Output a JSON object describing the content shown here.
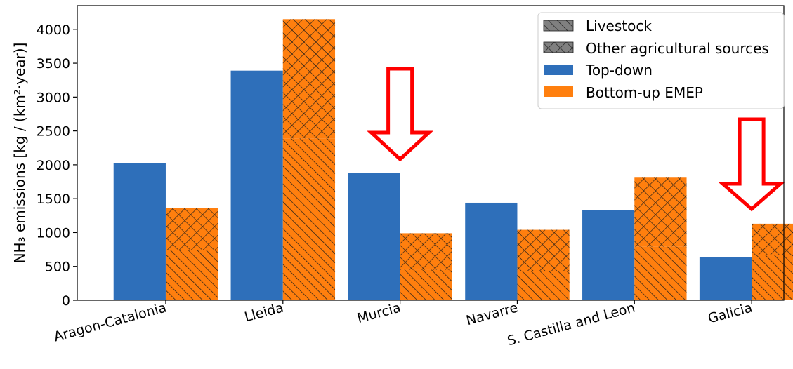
{
  "chart_data": {
    "type": "bar",
    "title": "",
    "xlabel": "",
    "ylabel": "NH₃ emissions [kg / (km²·year)]",
    "ylim": [
      0,
      4350
    ],
    "yticks": [
      0,
      500,
      1000,
      1500,
      2000,
      2500,
      3000,
      3500,
      4000
    ],
    "categories": [
      "Aragon-Catalonia",
      "Lleida",
      "Murcia",
      "Navarre",
      "S. Castilla and Leon",
      "Galicia"
    ],
    "series": [
      {
        "name": "Top-down",
        "color": "#2e6fba",
        "values": [
          2030,
          3390,
          1880,
          1440,
          1330,
          640
        ]
      },
      {
        "name": "Bottom-up EMEP",
        "color": "#ff7f0e",
        "values": [
          1360,
          4150,
          990,
          1040,
          1810,
          1130
        ],
        "components": [
          {
            "name": "Livestock",
            "hatch": "diagonal",
            "values": [
              740,
              2390,
              450,
              430,
              790,
              670
            ]
          },
          {
            "name": "Other agricultural sources",
            "hatch": "crosshatch",
            "values": [
              620,
              1760,
              540,
              610,
              1020,
              460
            ]
          }
        ]
      }
    ],
    "legend": {
      "position": "top-right",
      "entries": [
        {
          "label": "Livestock",
          "swatch": "diagonal-hatch"
        },
        {
          "label": "Other agricultural sources",
          "swatch": "crosshatch"
        },
        {
          "label": "Top-down",
          "swatch": "solid-blue"
        },
        {
          "label": "Bottom-up EMEP",
          "swatch": "solid-orange"
        }
      ]
    },
    "annotations": [
      {
        "type": "red-down-arrow",
        "target": "Murcia"
      },
      {
        "type": "red-down-arrow",
        "target": "Galicia"
      }
    ]
  }
}
